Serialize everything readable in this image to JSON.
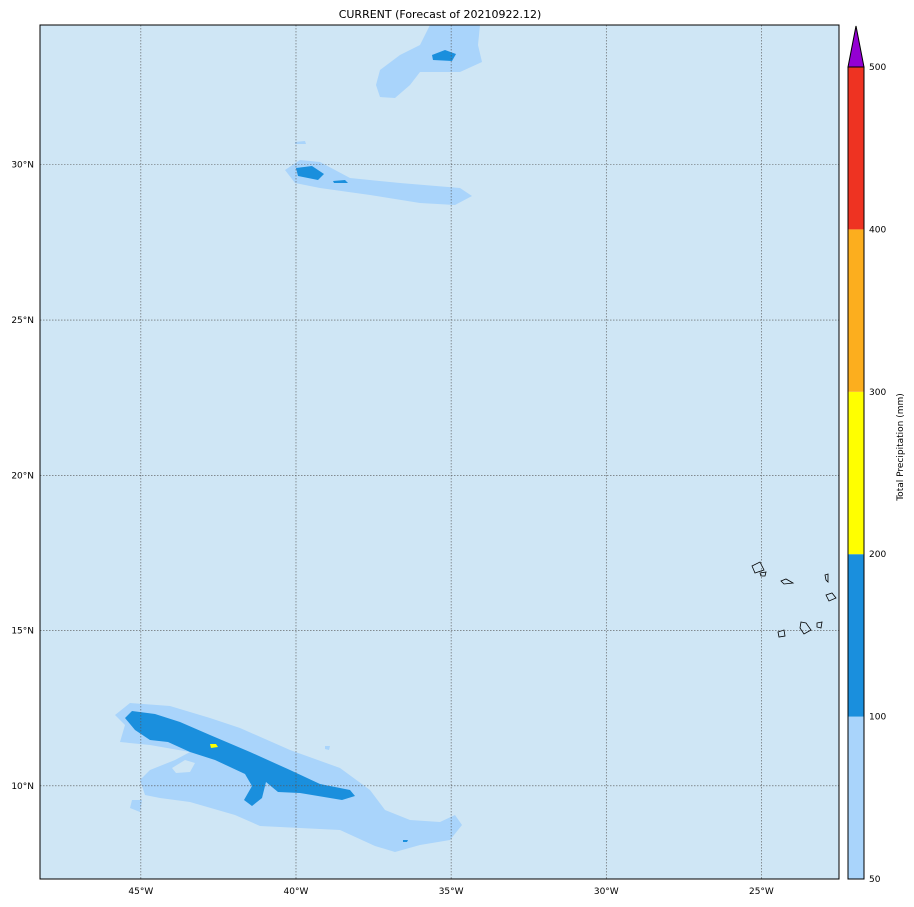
{
  "title": "CURRENT (Forecast of 20210922.12)",
  "map": {
    "lon_range": [
      -48.25,
      -22.5
    ],
    "lat_range": [
      7,
      34.5
    ],
    "lon_ticks": [
      {
        "v": -45,
        "label": "45°W"
      },
      {
        "v": -40,
        "label": "40°W"
      },
      {
        "v": -35,
        "label": "35°W"
      },
      {
        "v": -30,
        "label": "30°W"
      },
      {
        "v": -25,
        "label": "25°W"
      }
    ],
    "lat_ticks": [
      {
        "v": 30,
        "label": "30°N"
      },
      {
        "v": 25,
        "label": "25°N"
      },
      {
        "v": 20,
        "label": "20°N"
      },
      {
        "v": 15,
        "label": "15°N"
      },
      {
        "v": 10,
        "label": "10°N"
      }
    ],
    "background_color": "#cfe6f5",
    "gridlines": true
  },
  "colorbar": {
    "label": "Total Precipitation (mm)",
    "levels": [
      50,
      100,
      200,
      300,
      400,
      500
    ],
    "level_labels": [
      "50",
      "100",
      "200",
      "300",
      "400",
      "500"
    ],
    "colors": [
      "#a9d4fb",
      "#1a8fdd",
      "#ffff00",
      "#fcae1e",
      "#ee3322"
    ],
    "extend_color": "#9400d3",
    "extend": "max"
  }
}
